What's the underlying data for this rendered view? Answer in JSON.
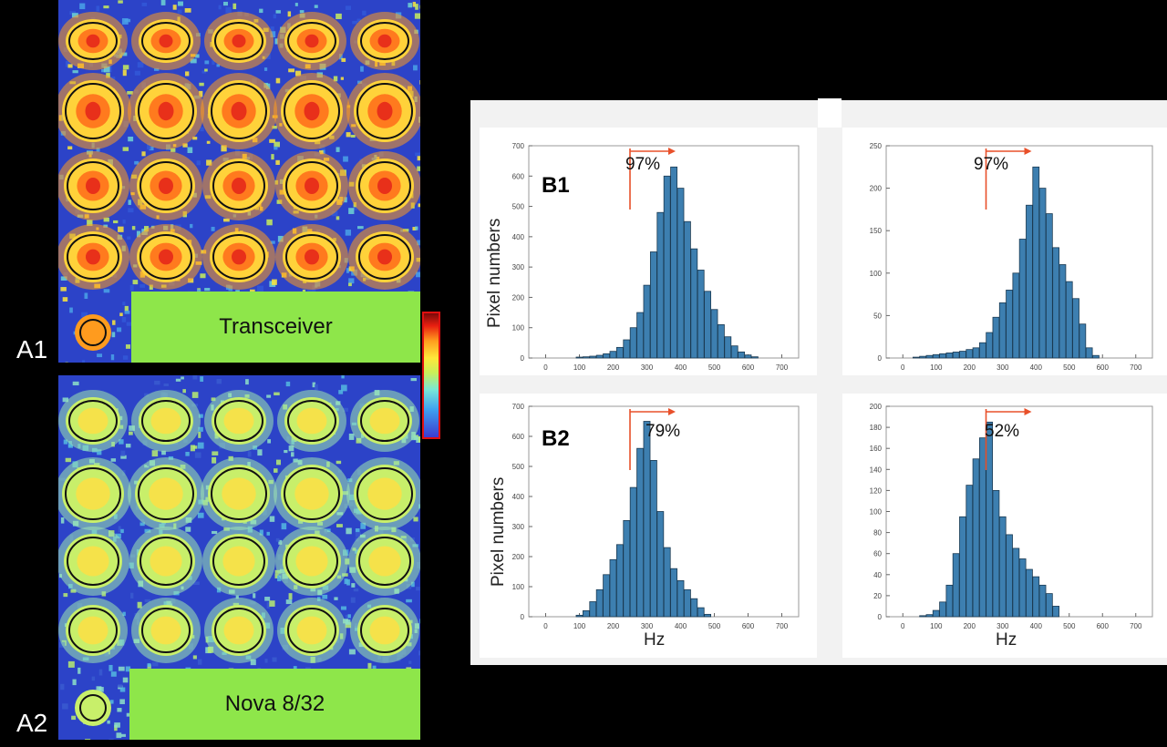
{
  "panels": {
    "a1": "A1",
    "a2": "A2",
    "b1": "B1",
    "b2": "B2"
  },
  "coil_labels": {
    "top": "Transceiver",
    "bottom": "Nova 8/32"
  },
  "colors": {
    "bar_fill": "#3d7fb0",
    "bar_stroke": "#1b3a52",
    "arrow": "#e8502a",
    "label_green": "#8ee64a"
  },
  "chart_data": [
    {
      "type": "bar",
      "title": "",
      "xlabel": "",
      "ylabel": "Pixel numbers",
      "xlim": [
        -50,
        750
      ],
      "ylim": [
        0,
        700
      ],
      "xticks": [
        0,
        100,
        200,
        300,
        400,
        500,
        600,
        700
      ],
      "yticks": [
        0,
        100,
        200,
        300,
        400,
        500,
        600,
        700
      ],
      "threshold": 250,
      "annotation": "97%",
      "x": [
        100,
        120,
        140,
        160,
        180,
        200,
        220,
        240,
        260,
        280,
        300,
        320,
        340,
        360,
        380,
        400,
        420,
        440,
        460,
        480,
        500,
        520,
        540,
        560,
        580,
        600,
        620
      ],
      "values": [
        3,
        4,
        6,
        9,
        14,
        22,
        35,
        60,
        100,
        150,
        240,
        350,
        480,
        600,
        630,
        560,
        450,
        360,
        290,
        220,
        160,
        110,
        70,
        40,
        20,
        10,
        4
      ]
    },
    {
      "type": "bar",
      "title": "",
      "xlabel": "",
      "ylabel": "",
      "xlim": [
        -50,
        750
      ],
      "ylim": [
        0,
        250
      ],
      "xticks": [
        0,
        100,
        200,
        300,
        400,
        500,
        600,
        700
      ],
      "yticks": [
        0,
        50,
        100,
        150,
        200,
        250
      ],
      "threshold": 250,
      "annotation": "97%",
      "x": [
        40,
        60,
        80,
        100,
        120,
        140,
        160,
        180,
        200,
        220,
        240,
        260,
        280,
        300,
        320,
        340,
        360,
        380,
        400,
        420,
        440,
        460,
        480,
        500,
        520,
        540,
        560,
        580
      ],
      "values": [
        1,
        2,
        3,
        4,
        5,
        6,
        7,
        8,
        10,
        12,
        18,
        30,
        48,
        65,
        80,
        100,
        140,
        180,
        225,
        200,
        170,
        130,
        110,
        90,
        70,
        40,
        12,
        3
      ]
    },
    {
      "type": "bar",
      "title": "",
      "xlabel": "Hz",
      "ylabel": "Pixel numbers",
      "xlim": [
        -50,
        750
      ],
      "ylim": [
        0,
        700
      ],
      "xticks": [
        0,
        100,
        200,
        300,
        400,
        500,
        600,
        700
      ],
      "yticks": [
        0,
        100,
        200,
        300,
        400,
        500,
        600,
        700
      ],
      "threshold": 250,
      "annotation": "79%",
      "x": [
        100,
        120,
        140,
        160,
        180,
        200,
        220,
        240,
        260,
        280,
        300,
        320,
        340,
        360,
        380,
        400,
        420,
        440,
        460,
        480
      ],
      "values": [
        5,
        20,
        50,
        90,
        140,
        190,
        240,
        320,
        430,
        560,
        650,
        520,
        350,
        230,
        160,
        120,
        90,
        60,
        30,
        8
      ]
    },
    {
      "type": "bar",
      "title": "",
      "xlabel": "Hz",
      "ylabel": "",
      "xlim": [
        -50,
        750
      ],
      "ylim": [
        0,
        200
      ],
      "xticks": [
        0,
        100,
        200,
        300,
        400,
        500,
        600,
        700
      ],
      "yticks": [
        0,
        20,
        40,
        60,
        80,
        100,
        120,
        140,
        160,
        180,
        200
      ],
      "threshold": 250,
      "annotation": "52%",
      "x": [
        60,
        80,
        100,
        120,
        140,
        160,
        180,
        200,
        220,
        240,
        260,
        280,
        300,
        320,
        340,
        360,
        380,
        400,
        420,
        440,
        460
      ],
      "values": [
        1,
        2,
        6,
        14,
        30,
        60,
        95,
        125,
        150,
        170,
        185,
        120,
        95,
        78,
        65,
        55,
        45,
        38,
        30,
        22,
        10
      ]
    }
  ]
}
